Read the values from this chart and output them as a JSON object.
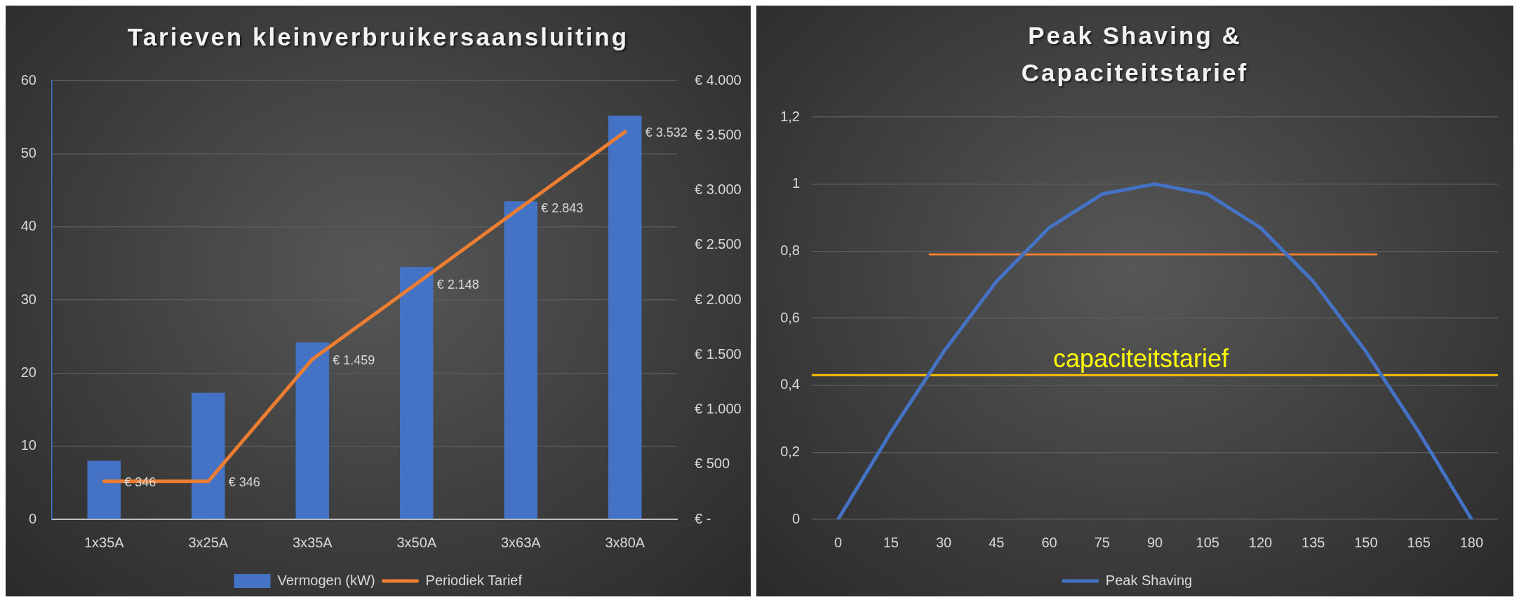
{
  "chart_data": [
    {
      "type": "bar",
      "title": "Tarieven kleinverbruikersaansluiting",
      "categories": [
        "1x35A",
        "3x25A",
        "3x35A",
        "3x50A",
        "3x63A",
        "3x80A"
      ],
      "series": [
        {
          "name": "Vermogen (kW)",
          "type": "bar",
          "color": "#4472c4",
          "values": [
            8,
            17.3,
            24.2,
            34.5,
            43.5,
            55.2
          ]
        },
        {
          "name": "Periodiek Tarief",
          "type": "line",
          "axis": "y2",
          "color": "#ed7d31",
          "values": [
            346,
            346,
            1459,
            2148,
            2843,
            3532
          ],
          "value_labels": [
            "€ 346",
            "€ 346",
            "€ 1.459",
            "€ 2.148",
            "€ 2.843",
            "€ 3.532"
          ]
        }
      ],
      "ylim": [
        0,
        60
      ],
      "yticks": [
        0,
        10,
        20,
        30,
        40,
        50,
        60
      ],
      "y2lim": [
        0,
        4000
      ],
      "y2ticks": [
        {
          "value": 0,
          "label": "€ -"
        },
        {
          "value": 500,
          "label": "€ 500"
        },
        {
          "value": 1000,
          "label": "€ 1.000"
        },
        {
          "value": 1500,
          "label": "€ 1.500"
        },
        {
          "value": 2000,
          "label": "€ 2.000"
        },
        {
          "value": 2500,
          "label": "€ 2.500"
        },
        {
          "value": 3000,
          "label": "€ 3.000"
        },
        {
          "value": 3500,
          "label": "€ 3.500"
        },
        {
          "value": 4000,
          "label": "€ 4.000"
        }
      ],
      "grid": "y",
      "legend": "bottom",
      "marker": "none"
    },
    {
      "type": "line",
      "title": "Peak Shaving & Capaciteitstarief",
      "x": [
        0,
        15,
        30,
        45,
        60,
        75,
        90,
        105,
        120,
        135,
        150,
        165,
        180
      ],
      "series": [
        {
          "name": "Peak Shaving",
          "color": "#4472c4",
          "values": [
            0,
            0.26,
            0.5,
            0.71,
            0.87,
            0.97,
            1,
            0.97,
            0.87,
            0.71,
            0.5,
            0.26,
            0
          ]
        },
        {
          "color": "#ed7d31",
          "x": [
            26,
            153
          ],
          "values": [
            0.79,
            0.79
          ]
        }
      ],
      "xlim": [
        -7.5,
        187.5
      ],
      "xticks": [
        0,
        15,
        30,
        45,
        60,
        75,
        90,
        105,
        120,
        135,
        150,
        165,
        180
      ],
      "ylim": [
        0,
        1.2
      ],
      "yticks": [
        0,
        {
          "value": 0.2,
          "label": "0,2"
        },
        {
          "value": 0.4,
          "label": "0,4"
        },
        {
          "value": 0.6,
          "label": "0,6"
        },
        {
          "value": 0.8,
          "label": "0,8"
        },
        1,
        {
          "value": 1.2,
          "label": "1,2"
        }
      ],
      "ref_lines": [
        {
          "axis": "y",
          "value": 0.43,
          "label": "capaciteitstarief",
          "color": "#ffc000"
        }
      ],
      "grid": "y",
      "legend": "bottom",
      "marker": "none"
    }
  ]
}
